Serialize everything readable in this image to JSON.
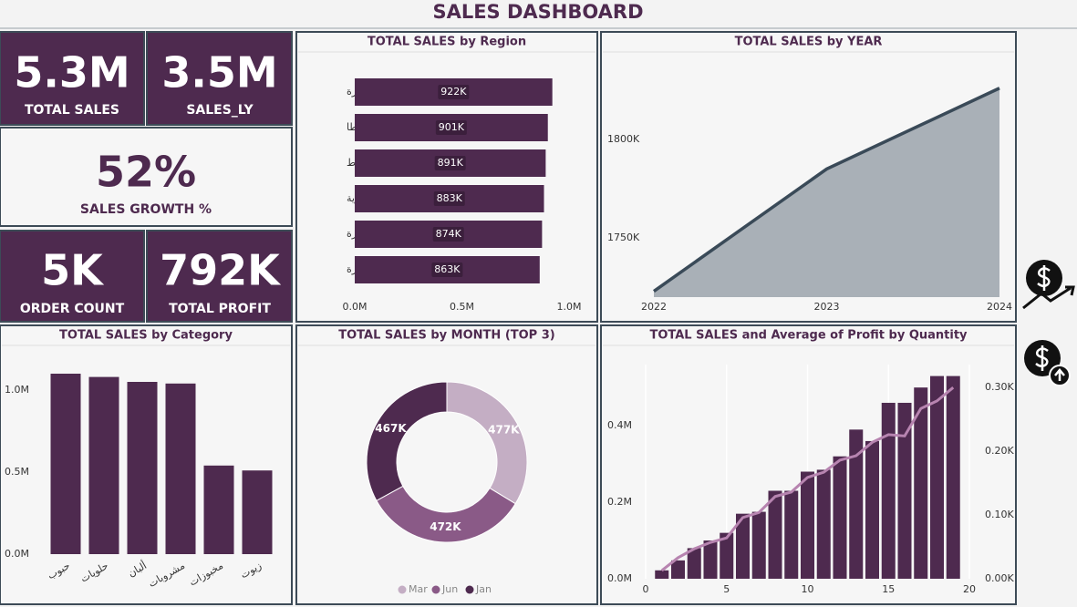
{
  "title": "SALES DASHBOARD",
  "kpis": [
    {
      "value": "5.3M",
      "label": "TOTAL SALES"
    },
    {
      "value": "3.5M",
      "label": "SALES_LY"
    },
    {
      "value": "52%",
      "label": "SALES GROWTH %"
    },
    {
      "value": "5K",
      "label": "ORDER COUNT"
    },
    {
      "value": "792K",
      "label": "TOTAL PROFIT"
    }
  ],
  "chart_data": [
    {
      "type": "hbar",
      "title": "TOTAL SALES by Region",
      "categories": [
        "القاهرة",
        "طنطا",
        "أسيوط",
        "الإسكندرية",
        "المنصورة",
        "الجيزة"
      ],
      "values": [
        0.922,
        0.901,
        0.891,
        0.883,
        0.874,
        0.863
      ],
      "value_labels": [
        "922K",
        "901K",
        "891K",
        "883K",
        "874K",
        "863K"
      ],
      "color": "#4e2a4f",
      "xlim": [
        0,
        1
      ],
      "xticks": [
        {
          "value": 0,
          "label": "0.0M"
        },
        {
          "value": 0.5,
          "label": "0.5M"
        },
        {
          "value": 1,
          "label": "1.0M"
        }
      ]
    },
    {
      "type": "area",
      "title": "TOTAL SALES by YEAR",
      "x": [
        2022,
        2023,
        2024
      ],
      "values": [
        1723,
        1785,
        1826
      ],
      "color": "#a9b0b7",
      "stroke": "#3a4a58",
      "xlim": [
        2022,
        2024
      ],
      "xticks": [
        2022,
        2023,
        2024
      ],
      "ylim": [
        1720,
        1843
      ],
      "yticks": [
        {
          "value": 1750,
          "label": "1750K"
        },
        {
          "value": 1800,
          "label": "1800K"
        }
      ]
    },
    {
      "type": "bar",
      "title": "TOTAL SALES by Category",
      "categories": [
        "حبوب",
        "حلويات",
        "ألبان",
        "مشروبات",
        "مخبوزات",
        "زيوت"
      ],
      "values": [
        1.1,
        1.08,
        1.05,
        1.04,
        0.54,
        0.51
      ],
      "color": "#4e2a4f",
      "ylim": [
        0,
        1.15
      ],
      "yticks": [
        {
          "value": 0,
          "label": "0.0M"
        },
        {
          "value": 0.5,
          "label": "0.5M"
        },
        {
          "value": 1,
          "label": "1.0M"
        }
      ]
    },
    {
      "type": "donut",
      "title": "TOTAL SALES by MONTH (TOP 3)",
      "categories": [
        "Mar",
        "Jun",
        "Jan"
      ],
      "values": [
        477,
        472,
        467
      ],
      "value_labels": [
        "477K",
        "472K",
        "467K"
      ],
      "colors": [
        "#c4aec4",
        "#8a5a87",
        "#4e2a4f"
      ]
    },
    {
      "type": "combo",
      "title": "TOTAL SALES and Average of Profit by Quantity",
      "x": [
        1,
        2,
        3,
        4,
        5,
        6,
        7,
        8,
        9,
        10,
        11,
        12,
        13,
        14,
        15,
        16,
        17,
        18,
        19
      ],
      "series": [
        {
          "type": "bar",
          "color": "#4e2a4f",
          "values": [
            0.022,
            0.048,
            0.08,
            0.1,
            0.12,
            0.17,
            0.175,
            0.23,
            0.23,
            0.28,
            0.285,
            0.32,
            0.39,
            0.36,
            0.46,
            0.46,
            0.5,
            0.53,
            0.53
          ]
        },
        {
          "type": "line",
          "color": "#b784b0",
          "axis": "y2",
          "values": [
            0.013,
            0.033,
            0.047,
            0.057,
            0.064,
            0.096,
            0.104,
            0.129,
            0.136,
            0.159,
            0.167,
            0.186,
            0.193,
            0.214,
            0.226,
            0.224,
            0.267,
            0.279,
            0.3
          ]
        }
      ],
      "xlim": [
        0,
        20
      ],
      "xticks": [
        0,
        5,
        10,
        15,
        20
      ],
      "ylim": [
        0,
        0.56
      ],
      "yticks": [
        {
          "value": 0,
          "label": "0.0M"
        },
        {
          "value": 0.2,
          "label": "0.2M"
        },
        {
          "value": 0.4,
          "label": "0.4M"
        }
      ],
      "y2lim": [
        0,
        0.336
      ],
      "y2ticks": [
        {
          "value": 0,
          "label": "0.00K"
        },
        {
          "value": 0.1,
          "label": "0.10K"
        },
        {
          "value": 0.2,
          "label": "0.20K"
        },
        {
          "value": 0.3,
          "label": "0.30K"
        }
      ]
    }
  ]
}
